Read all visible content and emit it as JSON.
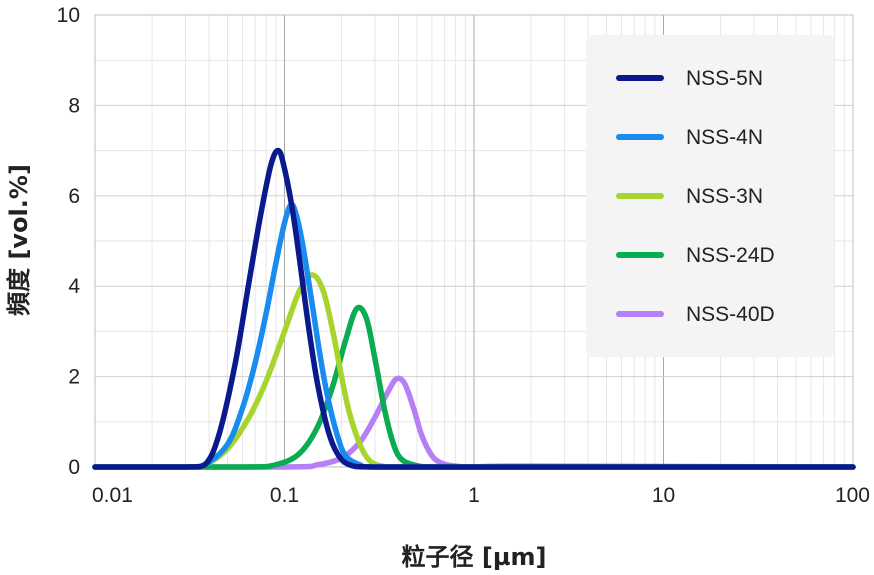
{
  "chart_data": {
    "type": "line",
    "xlabel": "粒子径 [µm]",
    "ylabel": "頻度 [vol.%]",
    "xscale": "log",
    "xlim": [
      0.01,
      100
    ],
    "ylim": [
      0,
      10
    ],
    "x_ticks": [
      {
        "value": 0.01,
        "label": "0.01"
      },
      {
        "value": 0.1,
        "label": "0.1"
      },
      {
        "value": 1,
        "label": "1"
      },
      {
        "value": 10,
        "label": "10"
      },
      {
        "value": 100,
        "label": "100"
      }
    ],
    "y_ticks": [
      {
        "value": 0,
        "label": "0"
      },
      {
        "value": 2,
        "label": "2"
      },
      {
        "value": 4,
        "label": "4"
      },
      {
        "value": 6,
        "label": "6"
      },
      {
        "value": 8,
        "label": "8"
      },
      {
        "value": 10,
        "label": "10"
      }
    ],
    "grid": true,
    "legend_position": "top-right",
    "series": [
      {
        "name": "NSS-5N",
        "color": "#0a1a8c",
        "x": [
          0.01,
          0.03,
          0.038,
          0.045,
          0.055,
          0.065,
          0.075,
          0.085,
          0.093,
          0.1,
          0.11,
          0.12,
          0.135,
          0.15,
          0.17,
          0.19,
          0.22,
          0.3,
          1,
          100
        ],
        "y": [
          0,
          0,
          0.05,
          0.7,
          2.3,
          4.1,
          5.6,
          6.7,
          7.0,
          6.6,
          5.7,
          4.6,
          3.0,
          1.8,
          0.8,
          0.3,
          0.05,
          0,
          0,
          0
        ]
      },
      {
        "name": "NSS-4N",
        "color": "#1a8cf0",
        "x": [
          0.01,
          0.03,
          0.038,
          0.05,
          0.06,
          0.07,
          0.08,
          0.09,
          0.1,
          0.108,
          0.115,
          0.125,
          0.14,
          0.155,
          0.17,
          0.19,
          0.21,
          0.25,
          0.3,
          1,
          100
        ],
        "y": [
          0,
          0,
          0.05,
          0.5,
          1.3,
          2.3,
          3.4,
          4.5,
          5.4,
          5.8,
          5.6,
          4.9,
          3.6,
          2.4,
          1.5,
          0.7,
          0.25,
          0.05,
          0,
          0,
          0
        ]
      },
      {
        "name": "NSS-3N",
        "color": "#a8d42e",
        "x": [
          0.01,
          0.03,
          0.038,
          0.05,
          0.065,
          0.08,
          0.1,
          0.12,
          0.14,
          0.16,
          0.18,
          0.2,
          0.22,
          0.25,
          0.28,
          0.32,
          0.4,
          1,
          100
        ],
        "y": [
          0,
          0,
          0.05,
          0.4,
          1.1,
          1.9,
          3.0,
          3.9,
          4.25,
          3.9,
          3.0,
          2.0,
          1.2,
          0.5,
          0.15,
          0.03,
          0,
          0,
          0
        ]
      },
      {
        "name": "NSS-24D",
        "color": "#0aac52",
        "x": [
          0.01,
          0.06,
          0.09,
          0.12,
          0.15,
          0.18,
          0.21,
          0.24,
          0.27,
          0.3,
          0.34,
          0.38,
          0.42,
          0.5,
          0.6,
          1,
          100
        ],
        "y": [
          0,
          0,
          0.05,
          0.3,
          0.9,
          1.8,
          2.8,
          3.5,
          3.3,
          2.4,
          1.2,
          0.45,
          0.15,
          0.03,
          0,
          0,
          0
        ]
      },
      {
        "name": "NSS-40D",
        "color": "#b67ff5",
        "x": [
          0.01,
          0.1,
          0.15,
          0.2,
          0.25,
          0.3,
          0.35,
          0.39,
          0.43,
          0.48,
          0.53,
          0.6,
          0.68,
          0.8,
          1,
          2,
          100
        ],
        "y": [
          0,
          0,
          0.05,
          0.2,
          0.55,
          1.1,
          1.65,
          1.95,
          1.85,
          1.3,
          0.7,
          0.25,
          0.08,
          0.02,
          0,
          0.02,
          0
        ]
      }
    ]
  }
}
